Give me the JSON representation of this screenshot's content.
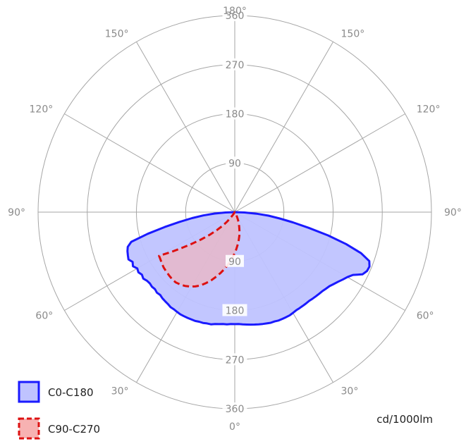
{
  "chart_data": {
    "type": "polar",
    "unit": "cd/1000lm",
    "angle_labels": [
      "0°",
      "30°",
      "60°",
      "90°",
      "120°",
      "150°",
      "180°"
    ],
    "ring_labels": [
      "90",
      "180",
      "270",
      "360"
    ],
    "rmax": 360,
    "series": [
      {
        "name": "C0-C180",
        "color": "#1a1aff",
        "fill": "#bfc3ff",
        "line": "solid",
        "points": [
          [
            -70,
            209
          ],
          [
            -68,
            211
          ],
          [
            -66,
            213
          ],
          [
            -64,
            208
          ],
          [
            -62,
            211
          ],
          [
            -60,
            206
          ],
          [
            -58,
            208
          ],
          [
            -56,
            205
          ],
          [
            -54,
            207
          ],
          [
            -52,
            204
          ],
          [
            -50,
            203
          ],
          [
            -48,
            204
          ],
          [
            -46,
            203
          ],
          [
            -44,
            205
          ],
          [
            -42,
            204
          ],
          [
            -40,
            206
          ],
          [
            -38,
            207
          ],
          [
            -36,
            208
          ],
          [
            -34,
            210
          ],
          [
            -32,
            210
          ],
          [
            -30,
            211
          ],
          [
            -28,
            212
          ],
          [
            -26,
            212
          ],
          [
            -24,
            212
          ],
          [
            -22,
            212
          ],
          [
            -20,
            212
          ],
          [
            -18,
            211
          ],
          [
            -16,
            211
          ],
          [
            -14,
            210
          ],
          [
            -12,
            210
          ],
          [
            -10,
            208
          ],
          [
            -8,
            207
          ],
          [
            -6,
            206
          ],
          [
            -4,
            206
          ],
          [
            -2,
            205
          ],
          [
            0,
            205
          ],
          [
            2,
            205
          ],
          [
            4,
            206
          ],
          [
            6,
            207
          ],
          [
            8,
            208
          ],
          [
            10,
            209
          ],
          [
            12,
            210
          ],
          [
            14,
            211
          ],
          [
            16,
            212
          ],
          [
            18,
            213
          ],
          [
            20,
            213
          ],
          [
            22,
            214
          ],
          [
            24,
            214
          ],
          [
            26,
            214
          ],
          [
            28,
            214
          ],
          [
            30,
            213
          ],
          [
            32,
            212
          ],
          [
            34,
            212
          ],
          [
            36,
            212
          ],
          [
            38,
            212
          ],
          [
            40,
            212
          ],
          [
            42,
            213
          ],
          [
            44,
            214
          ],
          [
            46,
            215
          ],
          [
            48,
            216
          ],
          [
            50,
            218
          ],
          [
            52,
            220
          ],
          [
            54,
            224
          ],
          [
            56,
            228
          ],
          [
            58,
            233
          ],
          [
            60,
            238
          ],
          [
            62,
            245
          ],
          [
            64,
            260
          ],
          [
            66,
            265
          ],
          [
            68,
            266
          ],
          [
            70,
            262
          ],
          [
            72,
            243
          ],
          [
            74,
            212
          ],
          [
            76,
            176
          ],
          [
            78,
            138
          ],
          [
            80,
            108
          ],
          [
            82,
            83
          ],
          [
            84,
            62
          ],
          [
            86,
            40
          ],
          [
            88,
            18
          ],
          [
            90,
            0
          ],
          [
            -90,
            0
          ],
          [
            -88,
            17
          ],
          [
            -86,
            37
          ],
          [
            -84,
            58
          ],
          [
            -82,
            79
          ],
          [
            -80,
            103
          ],
          [
            -78,
            131
          ],
          [
            -76,
            164
          ],
          [
            -74,
            197
          ],
          [
            -72,
            206
          ]
        ]
      },
      {
        "name": "C90-C270",
        "color": "#dd1111",
        "fill": "#f7b2b2",
        "line": "dashed",
        "points": [
          [
            -60,
            160
          ],
          [
            -58,
            161
          ],
          [
            -55,
            163
          ],
          [
            -52,
            165
          ],
          [
            -49,
            166
          ],
          [
            -46,
            167
          ],
          [
            -43,
            168
          ],
          [
            -40,
            168
          ],
          [
            -37,
            166
          ],
          [
            -34,
            163
          ],
          [
            -31,
            159
          ],
          [
            -28,
            154
          ],
          [
            -25,
            148
          ],
          [
            -22,
            140
          ],
          [
            -19,
            132
          ],
          [
            -16,
            123
          ],
          [
            -13,
            114
          ],
          [
            -10,
            105
          ],
          [
            -7,
            96
          ],
          [
            -4,
            87
          ],
          [
            -1,
            78
          ],
          [
            2,
            69
          ],
          [
            5,
            60
          ],
          [
            8,
            52
          ],
          [
            11,
            44
          ],
          [
            14,
            36
          ],
          [
            17,
            28
          ],
          [
            20,
            21
          ],
          [
            23,
            15
          ],
          [
            26,
            9
          ],
          [
            29,
            4
          ],
          [
            31,
            0
          ],
          [
            -33,
            5
          ],
          [
            -36,
            12
          ],
          [
            -39,
            22
          ],
          [
            -42,
            34
          ],
          [
            -45,
            47
          ],
          [
            -48,
            62
          ],
          [
            -51,
            80
          ],
          [
            -54,
            101
          ],
          [
            -56,
            118
          ],
          [
            -58,
            138
          ]
        ]
      }
    ]
  }
}
